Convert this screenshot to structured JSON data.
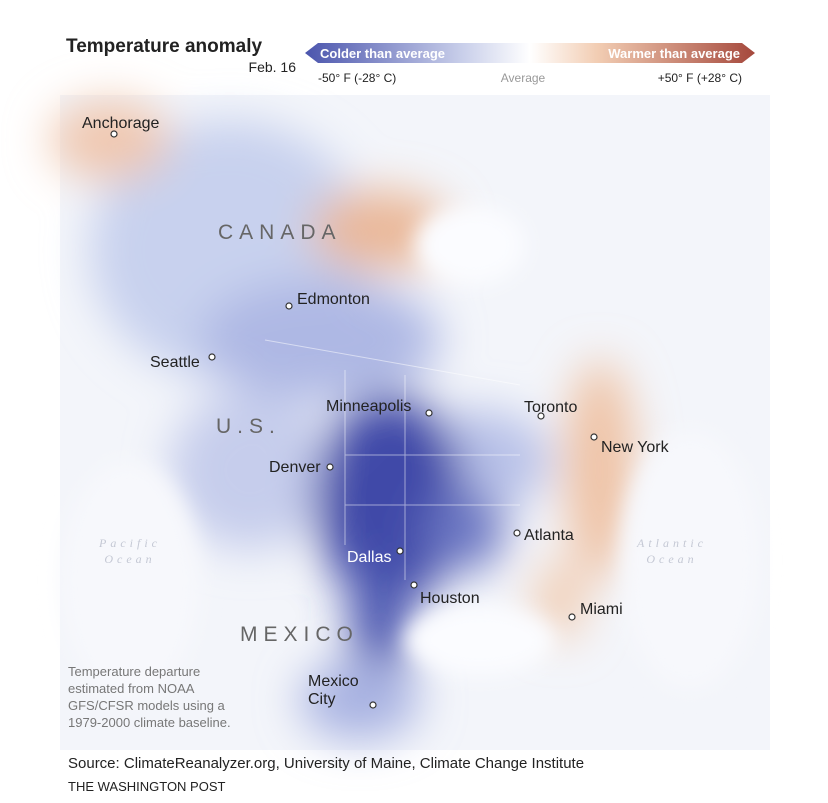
{
  "header": {
    "title": "Temperature anomaly",
    "date": "Feb. 16"
  },
  "legend": {
    "colder": "Colder than average",
    "warmer": "Warmer than average",
    "min": "-50° F (-28° C)",
    "mid": "Average",
    "max": "+50° F (+28° C)"
  },
  "regions": [
    {
      "label": "CANADA"
    },
    {
      "label": "U.S."
    },
    {
      "label": "MEXICO"
    }
  ],
  "oceans": [
    {
      "lines": [
        "Pacific",
        "Ocean"
      ]
    },
    {
      "lines": [
        "Atlantic",
        "Ocean"
      ]
    }
  ],
  "cities": [
    {
      "lines": [
        "Anchorage"
      ]
    },
    {
      "lines": [
        "Edmonton"
      ]
    },
    {
      "lines": [
        "Seattle"
      ]
    },
    {
      "lines": [
        "Minneapolis"
      ]
    },
    {
      "lines": [
        "Toronto"
      ]
    },
    {
      "lines": [
        "New York"
      ]
    },
    {
      "lines": [
        "Denver"
      ]
    },
    {
      "lines": [
        "Atlanta"
      ]
    },
    {
      "lines": [
        "Dallas"
      ]
    },
    {
      "lines": [
        "Houston"
      ]
    },
    {
      "lines": [
        "Miami"
      ]
    },
    {
      "lines": [
        "Mexico",
        "City"
      ]
    }
  ],
  "note": {
    "lines": [
      "Temperature departure",
      "estimated from NOAA",
      "GFS/CFSR models using a",
      "1979-2000 climate baseline."
    ]
  },
  "footer": {
    "source": "Source: ClimateReanalyzer.org, University of Maine, Climate Change Institute",
    "credit": "THE WASHINGTON POST"
  }
}
